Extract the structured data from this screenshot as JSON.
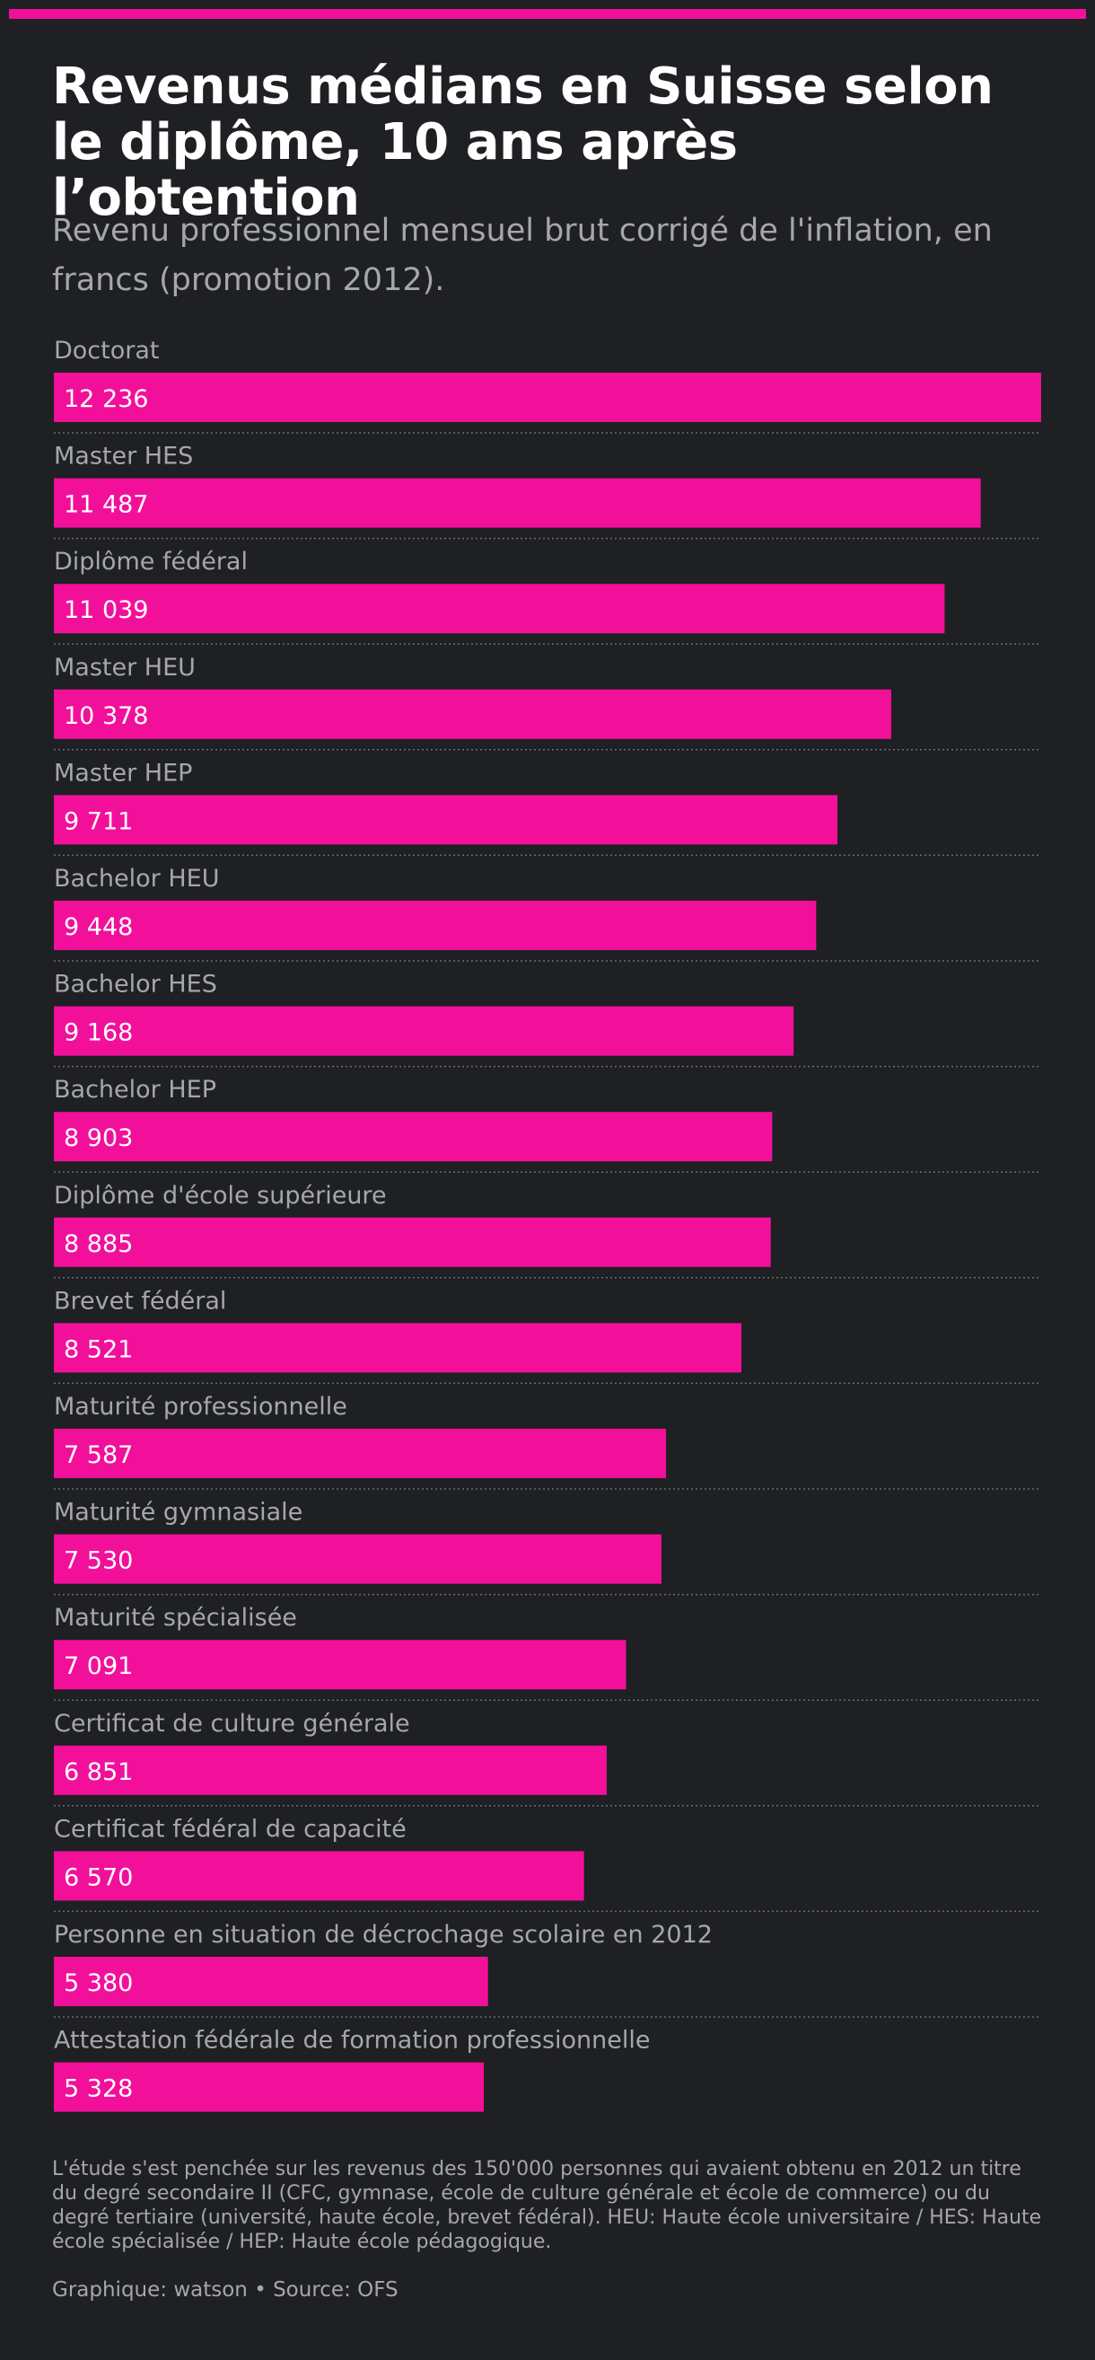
{
  "chart": {
    "title": "Revenus médians en Suisse selon le diplôme, 10 ans après l’obtention",
    "subtitle": "Revenu professionnel mensuel brut corrigé de l'inflation, en francs (promotion 2012).",
    "note": "L'étude s'est penchée sur les revenus des 150'000 personnes qui avaient obtenu en 2012 un titre du degré secondaire II (CFC, gymnase, école de culture générale et école de commerce) ou du degré tertiaire (université, haute école, brevet fédéral). HEU: Haute école universitaire / HES: Haute école spécialisée / HEP: Haute école pédagogique.",
    "credit": "Graphique: watson • Source: OFS"
  },
  "colors": {
    "background": "#1f2023",
    "bar": "#f2109b",
    "label": "#a6a7ab",
    "value_text": "#ffffff"
  },
  "chart_data": {
    "type": "bar",
    "orientation": "horizontal",
    "categories": [
      "Doctorat",
      "Master HES",
      "Diplôme fédéral",
      "Master HEU",
      "Master HEP",
      "Bachelor HEU",
      "Bachelor HES",
      "Bachelor HEP",
      "Diplôme d'école supérieure",
      "Brevet fédéral",
      "Maturité professionnelle",
      "Maturité gymnasiale",
      "Maturité spécialisée",
      "Certificat de culture générale",
      "Certificat fédéral de capacité",
      "Personne en situation de décrochage scolaire en 2012",
      "Attestation fédérale de formation professionnelle"
    ],
    "values": [
      12236,
      11487,
      11039,
      10378,
      9711,
      9448,
      9168,
      8903,
      8885,
      8521,
      7587,
      7530,
      7091,
      6851,
      6570,
      5380,
      5328
    ],
    "value_labels": [
      "12 236",
      "11 487",
      "11 039",
      "10 378",
      "9 711",
      "9 448",
      "9 168",
      "8 903",
      "8 885",
      "8 521",
      "7 587",
      "7 530",
      "7 091",
      "6 851",
      "6 570",
      "5 380",
      "5 328"
    ],
    "xlim": [
      0,
      12236
    ],
    "grid": false,
    "legend": "none"
  }
}
